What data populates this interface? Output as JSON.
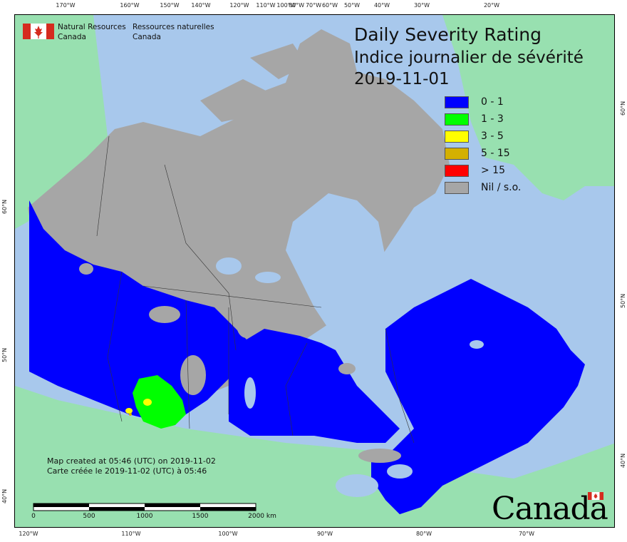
{
  "map": {
    "title_en": "Daily Severity Rating",
    "title_fr": "Indice journalier de sévérité",
    "date": "2019-11-01",
    "legend": [
      {
        "label": "0 - 1",
        "color": "#0000ff"
      },
      {
        "label": "1 - 3",
        "color": "#00ff00"
      },
      {
        "label": "3 - 5",
        "color": "#ffff00"
      },
      {
        "label": "5 - 15",
        "color": "#d4b000"
      },
      {
        "label": "> 15",
        "color": "#ff0000"
      },
      {
        "label": "Nil / s.o.",
        "color": "#a6a6a6"
      }
    ],
    "colors": {
      "ocean": "#a8c8ec",
      "foreign_land": "#98e0b0",
      "no_data": "#a6a6a6",
      "lake": "#a8c8ec"
    },
    "agency": {
      "name_en_line1": "Natural Resources",
      "name_en_line2": "Canada",
      "name_fr_line1": "Ressources naturelles",
      "name_fr_line2": "Canada"
    },
    "credit": {
      "en": "Map created at 05:46 (UTC) on 2019-11-02",
      "fr": "Carte créée le 2019-11-02 (UTC) à 05:46"
    },
    "scale": {
      "labels": [
        "0",
        "500",
        "1000",
        "1500",
        "2000  km"
      ]
    },
    "wordmark": "Canada",
    "graticule": {
      "top": [
        "170°W",
        "160°W",
        "150°W",
        "140°W",
        "120°W",
        "110°W",
        "100°W",
        "80°W",
        "70°W",
        "60°W",
        "50°W",
        "40°W",
        "30°W",
        "20°W"
      ],
      "bottom": [
        "120°W",
        "110°W",
        "100°W",
        "90°W",
        "80°W",
        "70°W"
      ],
      "left": [
        "60°N",
        "50°N",
        "40°N"
      ],
      "right": [
        "60°N",
        "50°N",
        "40°N"
      ]
    }
  }
}
